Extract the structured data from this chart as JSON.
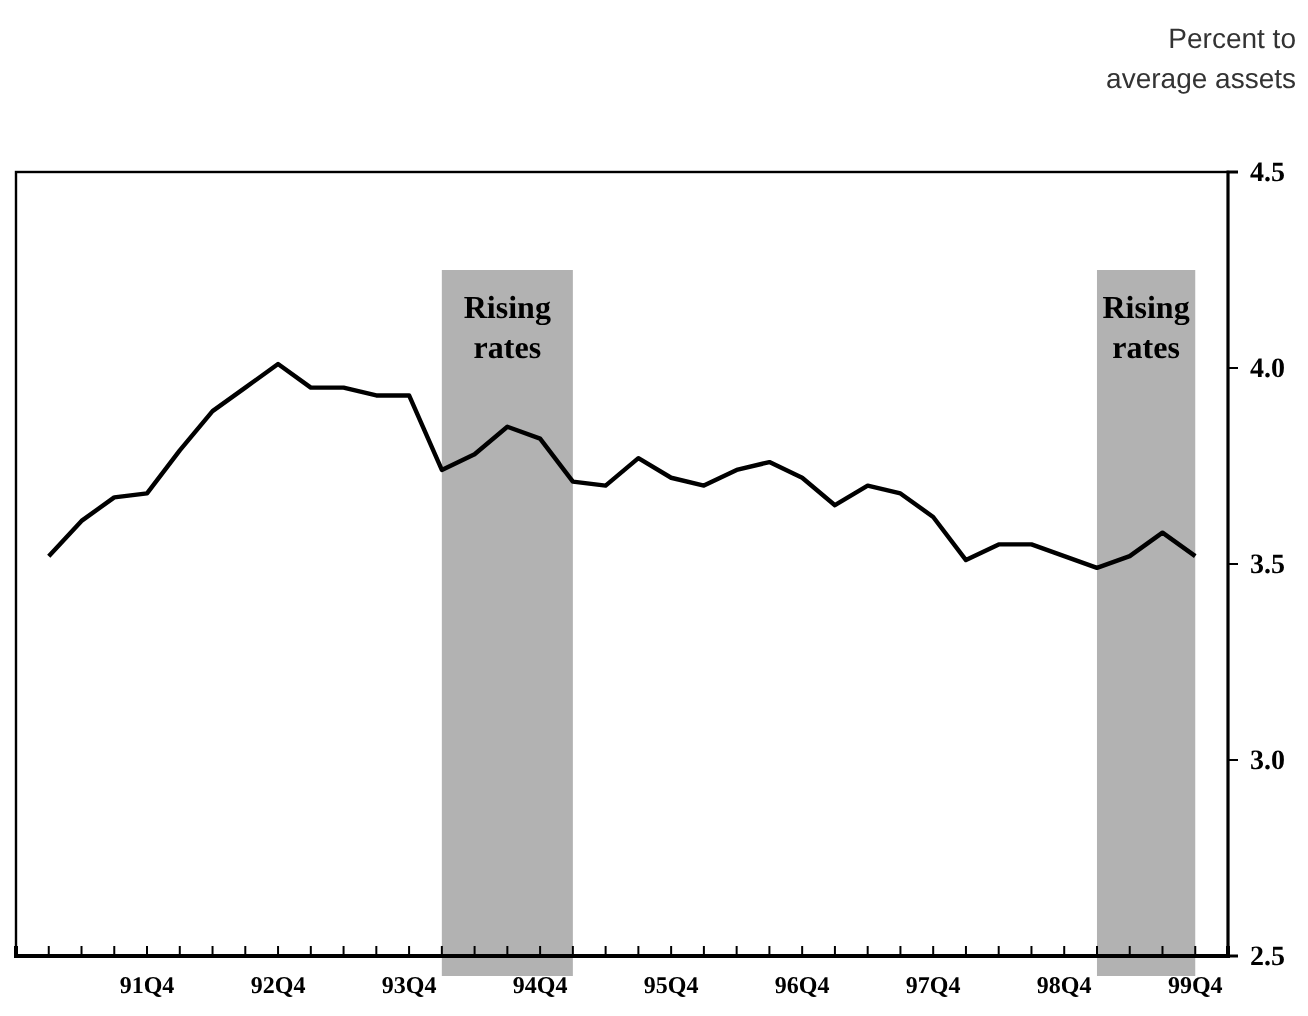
{
  "chart_data": {
    "type": "line",
    "ylabel": "Percent to average assets",
    "categories": [
      null,
      null,
      null,
      "91Q4",
      null,
      null,
      null,
      "92Q4",
      null,
      null,
      null,
      "93Q4",
      null,
      null,
      null,
      "94Q4",
      null,
      null,
      null,
      "95Q4",
      null,
      null,
      null,
      "96Q4",
      null,
      null,
      null,
      "97Q4",
      null,
      null,
      null,
      "98Q4",
      null,
      null,
      null,
      "99Q4"
    ],
    "series": [
      {
        "color": "#000000",
        "values": [
          3.52,
          3.61,
          3.67,
          3.68,
          3.79,
          3.89,
          3.95,
          4.01,
          3.95,
          3.95,
          3.93,
          3.93,
          3.74,
          3.78,
          3.85,
          3.82,
          3.71,
          3.7,
          3.77,
          3.72,
          3.7,
          3.74,
          3.76,
          3.72,
          3.65,
          3.7,
          3.68,
          3.62,
          3.51,
          3.55,
          3.55,
          3.52,
          3.49,
          3.52,
          3.58,
          3.52
        ]
      }
    ],
    "ylim": [
      2.5,
      4.5
    ],
    "yticks": [
      {
        "value": 2.5,
        "label": "2.5"
      },
      {
        "value": 3.0,
        "label": "3.0"
      },
      {
        "value": 3.5,
        "label": "3.5"
      },
      {
        "value": 4.0,
        "label": "4.0"
      },
      {
        "value": 4.5,
        "label": "4.5"
      }
    ],
    "annotations": [
      "Rising rates",
      "Rising rates"
    ],
    "grid": false,
    "marker": "none",
    "line_style": "solid"
  }
}
